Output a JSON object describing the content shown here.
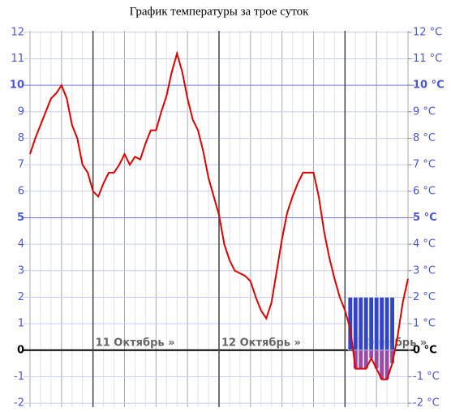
{
  "chart_data": {
    "type": "line",
    "title": "График температуры за трое суток",
    "categories": [
      null,
      null,
      null,
      null,
      null,
      null,
      null,
      null,
      null,
      null,
      null,
      null,
      "11 Октябрь »",
      null,
      null,
      null,
      null,
      null,
      null,
      null,
      null,
      null,
      null,
      null,
      null,
      null,
      null,
      null,
      null,
      null,
      null,
      null,
      null,
      null,
      null,
      null,
      "12 Октябрь »",
      null,
      null,
      null,
      null,
      null,
      null,
      null,
      null,
      null,
      null,
      null,
      null,
      null,
      null,
      null,
      null,
      null,
      null,
      null,
      null,
      null,
      null,
      null,
      "13 Октябрь »",
      null,
      null,
      null,
      null,
      null,
      null,
      null,
      null,
      null,
      null,
      null,
      null
    ],
    "series": [
      {
        "color": "#dd0000",
        "values": [
          7.4,
          8.0,
          8.5,
          9.0,
          9.5,
          9.7,
          10.0,
          9.5,
          8.5,
          8.0,
          7.0,
          6.7,
          6.0,
          5.8,
          6.3,
          6.7,
          6.7,
          7.0,
          7.4,
          7.0,
          7.3,
          7.2,
          7.8,
          8.3,
          8.3,
          9.0,
          9.6,
          10.5,
          11.2,
          10.5,
          9.5,
          8.7,
          8.3,
          7.5,
          6.5,
          5.8,
          5.1,
          4.0,
          3.4,
          3.0,
          2.9,
          2.8,
          2.6,
          2.0,
          1.5,
          1.2,
          1.8,
          3.0,
          4.2,
          5.2,
          5.8,
          6.3,
          6.7,
          6.7,
          6.7,
          5.8,
          4.5,
          3.5,
          2.7,
          2.0,
          1.5,
          0.8,
          -0.7,
          -0.7,
          -0.7,
          -0.3,
          -0.7,
          -1.1,
          -1.1,
          -0.5,
          0.5,
          1.8,
          2.7
        ]
      },
      {
        "type": "bar",
        "color": "#3344cc",
        "below_color": "#9a4aa8",
        "values": [
          null,
          null,
          null,
          null,
          null,
          null,
          null,
          null,
          null,
          null,
          null,
          null,
          null,
          null,
          null,
          null,
          null,
          null,
          null,
          null,
          null,
          null,
          null,
          null,
          null,
          null,
          null,
          null,
          null,
          null,
          null,
          null,
          null,
          null,
          null,
          null,
          null,
          null,
          null,
          null,
          null,
          null,
          null,
          null,
          null,
          null,
          null,
          null,
          null,
          null,
          null,
          null,
          null,
          null,
          null,
          null,
          null,
          null,
          null,
          null,
          null,
          2,
          2,
          2,
          2,
          2,
          2,
          2,
          2,
          2,
          null,
          null,
          null
        ]
      }
    ],
    "ylim": [
      -2.15,
      12.3
    ],
    "yticks": [
      -2,
      -1,
      0,
      1,
      2,
      3,
      4,
      5,
      6,
      7,
      8,
      9,
      10,
      11,
      12
    ],
    "y2lim": [
      -2.15,
      12.3
    ],
    "y2ticks": [
      {
        "value": -2,
        "label": "-2 °C"
      },
      {
        "value": -1,
        "label": "-1 °C"
      },
      {
        "value": 0,
        "label": "0 °C"
      },
      {
        "value": 1,
        "label": "1 °C"
      },
      {
        "value": 2,
        "label": "2 °C"
      },
      {
        "value": 3,
        "label": "3 °C"
      },
      {
        "value": 4,
        "label": "4 °C"
      },
      {
        "value": 5,
        "label": "5 °C"
      },
      {
        "value": 6,
        "label": "6 °C"
      },
      {
        "value": 7,
        "label": "7 °C"
      },
      {
        "value": 8,
        "label": "8 °C"
      },
      {
        "value": 9,
        "label": "9 °C"
      },
      {
        "value": 10,
        "label": "10 °C"
      },
      {
        "value": 11,
        "label": "11 °C"
      },
      {
        "value": 12,
        "label": "12 °C"
      }
    ],
    "grid": true
  }
}
